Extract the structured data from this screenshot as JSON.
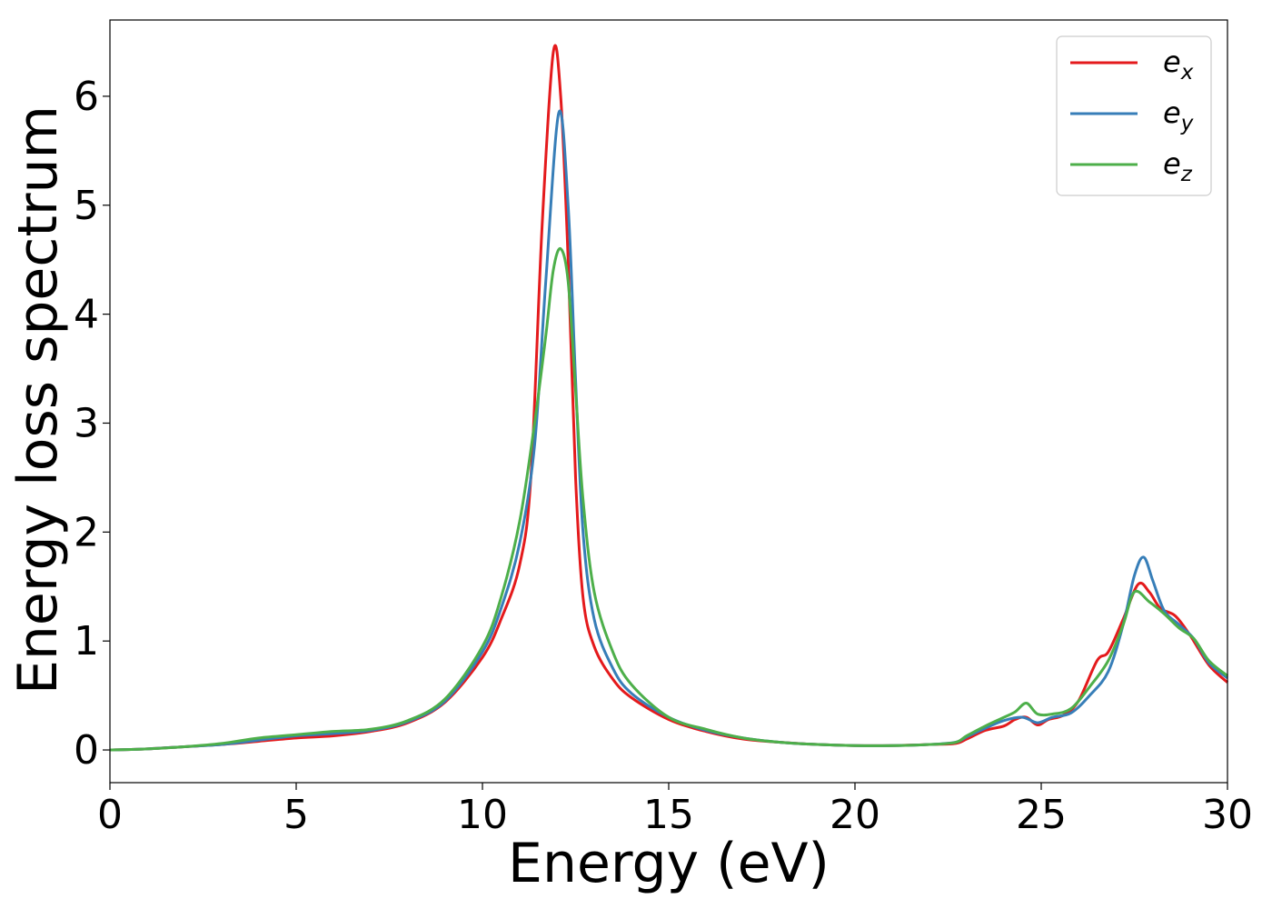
{
  "chart_data": {
    "type": "line",
    "xlabel": "Energy (eV)",
    "ylabel": "Energy loss spectrum",
    "xlim": [
      0,
      30
    ],
    "ylim": [
      -0.3,
      6.7
    ],
    "xticks": [
      "0",
      "5",
      "10",
      "15",
      "20",
      "25",
      "30"
    ],
    "yticks": [
      "0",
      "1",
      "2",
      "3",
      "4",
      "5",
      "6"
    ],
    "grid": false,
    "legend_position": "top-right",
    "series": [
      {
        "name": "e_x",
        "legend_base": "e",
        "legend_sub": "x",
        "color": "#e41a1c",
        "points": [
          [
            0,
            0
          ],
          [
            1,
            0.01
          ],
          [
            2,
            0.03
          ],
          [
            3,
            0.05
          ],
          [
            4,
            0.08
          ],
          [
            5,
            0.11
          ],
          [
            6,
            0.13
          ],
          [
            7,
            0.17
          ],
          [
            8,
            0.25
          ],
          [
            9,
            0.44
          ],
          [
            10,
            0.85
          ],
          [
            10.5,
            1.2
          ],
          [
            11,
            1.7
          ],
          [
            11.3,
            2.5
          ],
          [
            11.6,
            4.8
          ],
          [
            11.9,
            6.4
          ],
          [
            12.1,
            6.0
          ],
          [
            12.3,
            4.5
          ],
          [
            12.5,
            2.5
          ],
          [
            12.7,
            1.4
          ],
          [
            13,
            0.95
          ],
          [
            13.5,
            0.65
          ],
          [
            14,
            0.48
          ],
          [
            15,
            0.28
          ],
          [
            16,
            0.17
          ],
          [
            17,
            0.1
          ],
          [
            18,
            0.07
          ],
          [
            19,
            0.05
          ],
          [
            20,
            0.04
          ],
          [
            21,
            0.04
          ],
          [
            22,
            0.05
          ],
          [
            22.7,
            0.06
          ],
          [
            23,
            0.1
          ],
          [
            23.5,
            0.18
          ],
          [
            24,
            0.22
          ],
          [
            24.3,
            0.28
          ],
          [
            24.6,
            0.3
          ],
          [
            24.9,
            0.23
          ],
          [
            25.2,
            0.28
          ],
          [
            25.6,
            0.32
          ],
          [
            26,
            0.45
          ],
          [
            26.5,
            0.82
          ],
          [
            26.8,
            0.9
          ],
          [
            27.2,
            1.2
          ],
          [
            27.6,
            1.52
          ],
          [
            27.9,
            1.45
          ],
          [
            28.2,
            1.3
          ],
          [
            28.6,
            1.23
          ],
          [
            29,
            1.05
          ],
          [
            29.5,
            0.78
          ],
          [
            30,
            0.62
          ]
        ]
      },
      {
        "name": "e_y",
        "legend_base": "e",
        "legend_sub": "y",
        "color": "#377eb8",
        "points": [
          [
            0,
            0
          ],
          [
            1,
            0.01
          ],
          [
            2,
            0.03
          ],
          [
            3,
            0.05
          ],
          [
            4,
            0.09
          ],
          [
            5,
            0.13
          ],
          [
            6,
            0.15
          ],
          [
            7,
            0.18
          ],
          [
            8,
            0.26
          ],
          [
            9,
            0.45
          ],
          [
            10,
            0.9
          ],
          [
            10.5,
            1.3
          ],
          [
            11,
            1.9
          ],
          [
            11.4,
            2.8
          ],
          [
            11.7,
            4.3
          ],
          [
            12.05,
            5.85
          ],
          [
            12.3,
            5.0
          ],
          [
            12.5,
            3.4
          ],
          [
            12.7,
            2.0
          ],
          [
            13,
            1.2
          ],
          [
            13.5,
            0.75
          ],
          [
            14,
            0.52
          ],
          [
            15,
            0.3
          ],
          [
            16,
            0.18
          ],
          [
            17,
            0.11
          ],
          [
            18,
            0.07
          ],
          [
            19,
            0.05
          ],
          [
            20,
            0.04
          ],
          [
            21,
            0.04
          ],
          [
            22,
            0.05
          ],
          [
            22.7,
            0.07
          ],
          [
            23,
            0.12
          ],
          [
            23.5,
            0.2
          ],
          [
            24,
            0.27
          ],
          [
            24.5,
            0.3
          ],
          [
            24.9,
            0.25
          ],
          [
            25.3,
            0.3
          ],
          [
            25.8,
            0.34
          ],
          [
            26.3,
            0.5
          ],
          [
            26.8,
            0.72
          ],
          [
            27.2,
            1.15
          ],
          [
            27.5,
            1.6
          ],
          [
            27.75,
            1.77
          ],
          [
            28,
            1.55
          ],
          [
            28.3,
            1.28
          ],
          [
            28.7,
            1.15
          ],
          [
            29.1,
            1.02
          ],
          [
            29.5,
            0.8
          ],
          [
            30,
            0.66
          ]
        ]
      },
      {
        "name": "e_z",
        "legend_base": "e",
        "legend_sub": "z",
        "color": "#4daf4a",
        "points": [
          [
            0,
            0
          ],
          [
            1,
            0.01
          ],
          [
            2,
            0.03
          ],
          [
            3,
            0.06
          ],
          [
            4,
            0.11
          ],
          [
            5,
            0.14
          ],
          [
            6,
            0.17
          ],
          [
            7,
            0.19
          ],
          [
            8,
            0.27
          ],
          [
            9,
            0.47
          ],
          [
            10,
            0.95
          ],
          [
            10.5,
            1.4
          ],
          [
            11,
            2.1
          ],
          [
            11.4,
            3.0
          ],
          [
            11.7,
            3.8
          ],
          [
            11.9,
            4.4
          ],
          [
            12.1,
            4.6
          ],
          [
            12.3,
            4.3
          ],
          [
            12.5,
            3.3
          ],
          [
            12.7,
            2.3
          ],
          [
            13,
            1.45
          ],
          [
            13.5,
            0.9
          ],
          [
            14,
            0.6
          ],
          [
            15,
            0.3
          ],
          [
            16,
            0.19
          ],
          [
            17,
            0.11
          ],
          [
            18,
            0.07
          ],
          [
            19,
            0.05
          ],
          [
            20,
            0.04
          ],
          [
            21,
            0.04
          ],
          [
            22,
            0.05
          ],
          [
            22.7,
            0.07
          ],
          [
            23,
            0.13
          ],
          [
            23.5,
            0.22
          ],
          [
            24,
            0.3
          ],
          [
            24.3,
            0.35
          ],
          [
            24.6,
            0.43
          ],
          [
            24.9,
            0.33
          ],
          [
            25.3,
            0.33
          ],
          [
            25.8,
            0.38
          ],
          [
            26.3,
            0.58
          ],
          [
            26.8,
            0.82
          ],
          [
            27.2,
            1.15
          ],
          [
            27.5,
            1.45
          ],
          [
            27.9,
            1.36
          ],
          [
            28.3,
            1.25
          ],
          [
            28.7,
            1.12
          ],
          [
            29.1,
            1.02
          ],
          [
            29.5,
            0.82
          ],
          [
            30,
            0.68
          ]
        ]
      }
    ]
  }
}
